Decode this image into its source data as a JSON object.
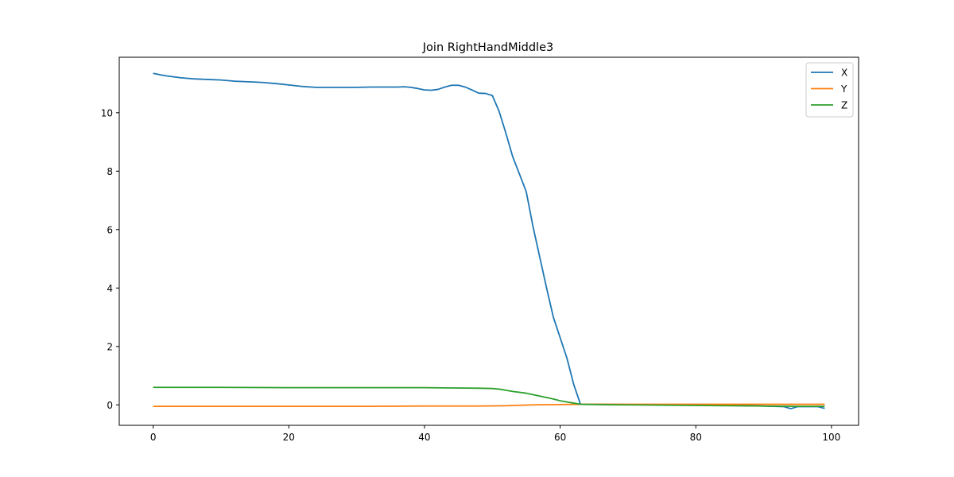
{
  "chart_data": {
    "type": "line",
    "title": "Join RightHandMiddle3",
    "xlabel": "",
    "ylabel": "",
    "xlim": [
      -5,
      104
    ],
    "ylim": [
      -0.7,
      11.9
    ],
    "xticks": [
      0,
      20,
      40,
      60,
      80,
      100
    ],
    "yticks": [
      0,
      2,
      4,
      6,
      8,
      10
    ],
    "grid": false,
    "legend": {
      "placement": "top-right",
      "entries": [
        "X",
        "Y",
        "Z"
      ]
    },
    "series": [
      {
        "name": "X",
        "color": "#1f77b4",
        "points": [
          [
            0,
            11.35
          ],
          [
            1,
            11.3
          ],
          [
            2,
            11.26
          ],
          [
            3,
            11.23
          ],
          [
            4,
            11.2
          ],
          [
            5,
            11.18
          ],
          [
            6,
            11.16
          ],
          [
            8,
            11.14
          ],
          [
            10,
            11.12
          ],
          [
            12,
            11.08
          ],
          [
            14,
            11.06
          ],
          [
            16,
            11.04
          ],
          [
            18,
            11.0
          ],
          [
            20,
            10.95
          ],
          [
            22,
            10.9
          ],
          [
            24,
            10.87
          ],
          [
            26,
            10.87
          ],
          [
            28,
            10.87
          ],
          [
            30,
            10.87
          ],
          [
            32,
            10.88
          ],
          [
            34,
            10.88
          ],
          [
            36,
            10.88
          ],
          [
            37,
            10.89
          ],
          [
            38,
            10.87
          ],
          [
            39,
            10.83
          ],
          [
            40,
            10.78
          ],
          [
            41,
            10.77
          ],
          [
            42,
            10.8
          ],
          [
            43,
            10.88
          ],
          [
            44,
            10.94
          ],
          [
            45,
            10.94
          ],
          [
            46,
            10.88
          ],
          [
            47,
            10.78
          ],
          [
            48,
            10.67
          ],
          [
            49,
            10.66
          ],
          [
            50,
            10.59
          ],
          [
            51,
            10.05
          ],
          [
            52,
            9.3
          ],
          [
            53,
            8.5
          ],
          [
            54,
            7.9
          ],
          [
            55,
            7.3
          ],
          [
            56,
            6.1
          ],
          [
            57,
            5.05
          ],
          [
            58,
            4.0
          ],
          [
            59,
            3.0
          ],
          [
            60,
            2.3
          ],
          [
            61,
            1.6
          ],
          [
            62,
            0.7
          ],
          [
            63,
            0.02
          ],
          [
            65,
            0.02
          ],
          [
            70,
            0.01
          ],
          [
            75,
            0.0
          ],
          [
            80,
            -0.01
          ],
          [
            85,
            -0.02
          ],
          [
            90,
            -0.04
          ],
          [
            93,
            -0.06
          ],
          [
            94,
            -0.13
          ],
          [
            95,
            -0.06
          ],
          [
            98,
            -0.06
          ],
          [
            99,
            -0.12
          ]
        ]
      },
      {
        "name": "Y",
        "color": "#ff7f0e",
        "points": [
          [
            0,
            -0.05
          ],
          [
            10,
            -0.05
          ],
          [
            20,
            -0.05
          ],
          [
            30,
            -0.05
          ],
          [
            40,
            -0.04
          ],
          [
            48,
            -0.04
          ],
          [
            52,
            -0.03
          ],
          [
            56,
            0.0
          ],
          [
            60,
            0.01
          ],
          [
            63,
            0.02
          ],
          [
            70,
            0.02
          ],
          [
            80,
            0.02
          ],
          [
            90,
            0.02
          ],
          [
            95,
            0.02
          ],
          [
            99,
            0.02
          ]
        ]
      },
      {
        "name": "Z",
        "color": "#2ca02c",
        "points": [
          [
            0,
            0.6
          ],
          [
            10,
            0.6
          ],
          [
            20,
            0.59
          ],
          [
            30,
            0.59
          ],
          [
            40,
            0.59
          ],
          [
            44,
            0.58
          ],
          [
            48,
            0.57
          ],
          [
            50,
            0.56
          ],
          [
            51,
            0.54
          ],
          [
            52,
            0.5
          ],
          [
            53,
            0.46
          ],
          [
            55,
            0.4
          ],
          [
            57,
            0.3
          ],
          [
            59,
            0.2
          ],
          [
            60,
            0.14
          ],
          [
            61,
            0.1
          ],
          [
            62,
            0.06
          ],
          [
            63,
            0.02
          ],
          [
            65,
            0.01
          ],
          [
            70,
            0.0
          ],
          [
            75,
            -0.01
          ],
          [
            80,
            -0.02
          ],
          [
            85,
            -0.03
          ],
          [
            90,
            -0.04
          ],
          [
            95,
            -0.05
          ],
          [
            99,
            -0.05
          ]
        ]
      }
    ]
  }
}
